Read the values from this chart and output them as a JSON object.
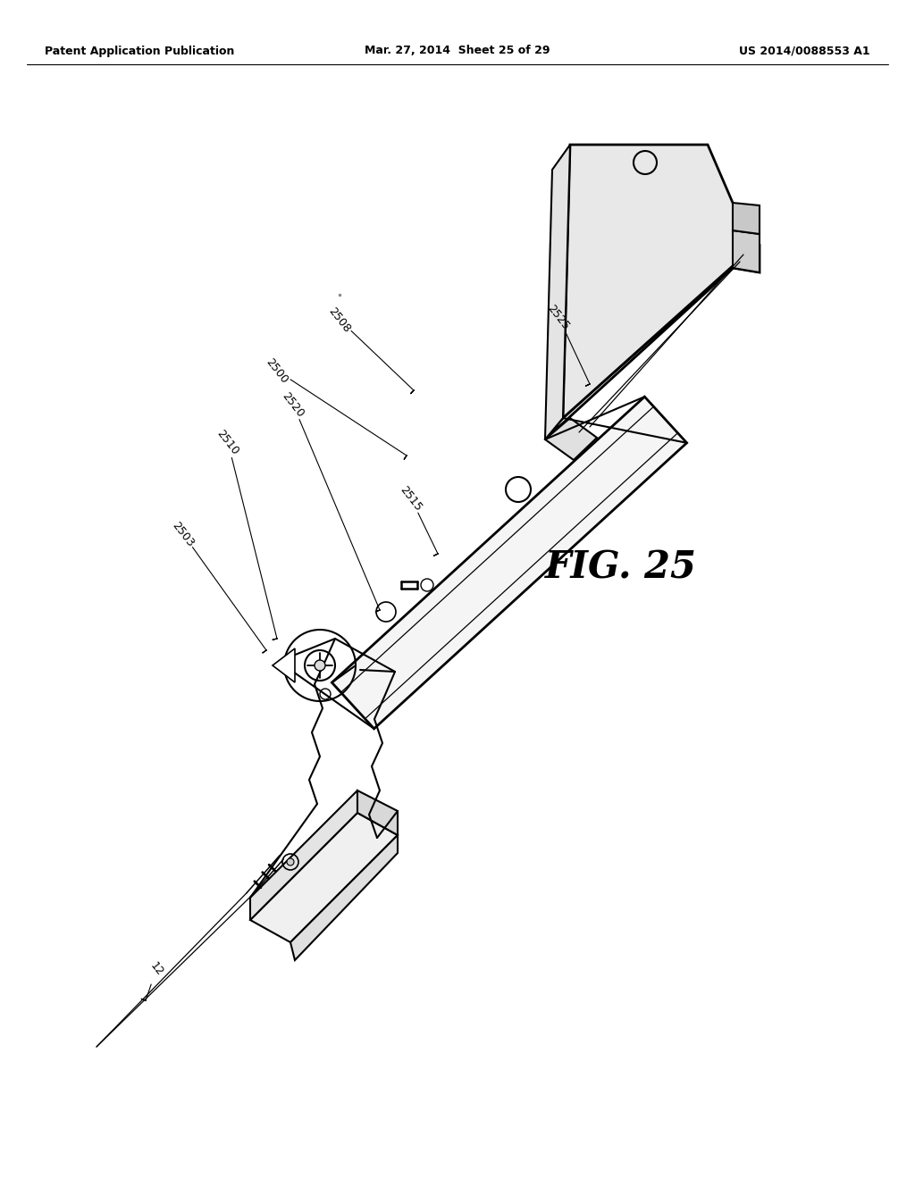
{
  "background_color": "#ffffff",
  "line_color": "#000000",
  "header_left": "Patent Application Publication",
  "header_center": "Mar. 27, 2014  Sheet 25 of 29",
  "header_right": "US 2014/0088553 A1",
  "fig_label": "FIG. 25",
  "label_rotation": -52,
  "lw_main": 1.5,
  "lw_thin": 0.9,
  "lw_thick": 2.0,
  "callouts": [
    [
      "2500",
      310,
      415,
      455,
      510
    ],
    [
      "2503",
      205,
      598,
      298,
      728
    ],
    [
      "2508",
      380,
      358,
      463,
      437
    ],
    [
      "2510",
      255,
      495,
      310,
      715
    ],
    [
      "2515",
      460,
      558,
      490,
      620
    ],
    [
      "2520",
      328,
      453,
      425,
      683
    ],
    [
      "2525",
      625,
      355,
      660,
      430
    ],
    [
      "12",
      175,
      1085,
      163,
      1120
    ]
  ]
}
